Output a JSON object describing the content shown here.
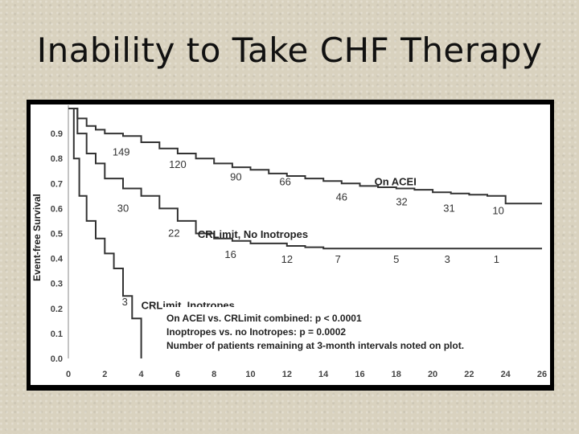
{
  "slide": {
    "title": "Inability to Take CHF Therapy"
  },
  "chart_data": {
    "type": "line",
    "xlabel": "",
    "ylabel": "Event-free Survival",
    "xlim": [
      0,
      26
    ],
    "ylim": [
      0,
      1.0
    ],
    "x_ticks": [
      0,
      2,
      4,
      6,
      8,
      10,
      12,
      14,
      16,
      18,
      20,
      22,
      24,
      26
    ],
    "y_ticks": [
      0.0,
      0.1,
      0.2,
      0.3,
      0.4,
      0.5,
      0.6,
      0.7,
      0.8,
      0.9
    ],
    "y_tick_labels": [
      "0.0",
      "0.1",
      "0.2",
      "0.3",
      "0.4",
      "0.5",
      "0.6",
      "0.7",
      "0.8",
      "0.9"
    ],
    "grid": false,
    "series": [
      {
        "name": "On ACEI",
        "color": "#333333",
        "points": [
          [
            0,
            1.0
          ],
          [
            0.5,
            0.96
          ],
          [
            1,
            0.93
          ],
          [
            1.5,
            0.915
          ],
          [
            2,
            0.9
          ],
          [
            3,
            0.89
          ],
          [
            4,
            0.865
          ],
          [
            5,
            0.84
          ],
          [
            6,
            0.82
          ],
          [
            7,
            0.8
          ],
          [
            8,
            0.78
          ],
          [
            9,
            0.765
          ],
          [
            10,
            0.755
          ],
          [
            11,
            0.74
          ],
          [
            12,
            0.73
          ],
          [
            13,
            0.72
          ],
          [
            14,
            0.71
          ],
          [
            15,
            0.7
          ],
          [
            16,
            0.69
          ],
          [
            17,
            0.685
          ],
          [
            18,
            0.68
          ],
          [
            19,
            0.675
          ],
          [
            20,
            0.665
          ],
          [
            21,
            0.66
          ],
          [
            22,
            0.655
          ],
          [
            23,
            0.65
          ],
          [
            24,
            0.62
          ],
          [
            26,
            0.62
          ]
        ]
      },
      {
        "name": "CRLimit, No Inotropes",
        "color": "#333333",
        "points": [
          [
            0,
            1.0
          ],
          [
            0.5,
            0.9
          ],
          [
            1,
            0.82
          ],
          [
            1.5,
            0.78
          ],
          [
            2,
            0.72
          ],
          [
            3,
            0.68
          ],
          [
            4,
            0.65
          ],
          [
            5,
            0.6
          ],
          [
            6,
            0.55
          ],
          [
            7,
            0.5
          ],
          [
            8,
            0.48
          ],
          [
            9,
            0.47
          ],
          [
            10,
            0.46
          ],
          [
            12,
            0.45
          ],
          [
            13,
            0.445
          ],
          [
            14,
            0.44
          ],
          [
            26,
            0.44
          ]
        ]
      },
      {
        "name": "CRLimit, Inotropes",
        "color": "#333333",
        "points": [
          [
            0,
            1.0
          ],
          [
            0.3,
            0.8
          ],
          [
            0.6,
            0.65
          ],
          [
            1,
            0.55
          ],
          [
            1.5,
            0.48
          ],
          [
            2,
            0.42
          ],
          [
            2.5,
            0.36
          ],
          [
            3,
            0.25
          ],
          [
            3.5,
            0.16
          ],
          [
            4,
            0.0
          ]
        ]
      }
    ],
    "at_risk": [
      {
        "x": 2.9,
        "y": 0.825,
        "label": "149"
      },
      {
        "x": 6.0,
        "y": 0.775,
        "label": "120"
      },
      {
        "x": 9.2,
        "y": 0.725,
        "label": "90"
      },
      {
        "x": 11.9,
        "y": 0.705,
        "label": "66"
      },
      {
        "x": 15.0,
        "y": 0.645,
        "label": "46"
      },
      {
        "x": 18.3,
        "y": 0.625,
        "label": "32"
      },
      {
        "x": 20.9,
        "y": 0.6,
        "label": "31"
      },
      {
        "x": 23.6,
        "y": 0.59,
        "label": "10"
      },
      {
        "x": 3.0,
        "y": 0.6,
        "label": "30"
      },
      {
        "x": 5.8,
        "y": 0.5,
        "label": "22"
      },
      {
        "x": 8.9,
        "y": 0.415,
        "label": "16"
      },
      {
        "x": 12.0,
        "y": 0.395,
        "label": "12"
      },
      {
        "x": 14.8,
        "y": 0.395,
        "label": "7"
      },
      {
        "x": 18.0,
        "y": 0.395,
        "label": "5"
      },
      {
        "x": 20.8,
        "y": 0.395,
        "label": "3"
      },
      {
        "x": 23.5,
        "y": 0.395,
        "label": "1"
      },
      {
        "x": 3.1,
        "y": 0.225,
        "label": "3"
      }
    ],
    "series_labels": [
      {
        "x": 16.8,
        "y": 0.705,
        "label": "On ACEI"
      },
      {
        "x": 7.1,
        "y": 0.495,
        "label": "CRLimit, No Inotropes"
      },
      {
        "x": 4.0,
        "y": 0.21,
        "label": "CRLimit, Inotropes"
      }
    ],
    "annotations": [
      "On ACEI vs. CRLimit combined: p < 0.0001",
      "Inoptropes vs. no Inotropes: p = 0.0002",
      "Number of patients remaining at 3-month intervals noted on plot."
    ]
  }
}
